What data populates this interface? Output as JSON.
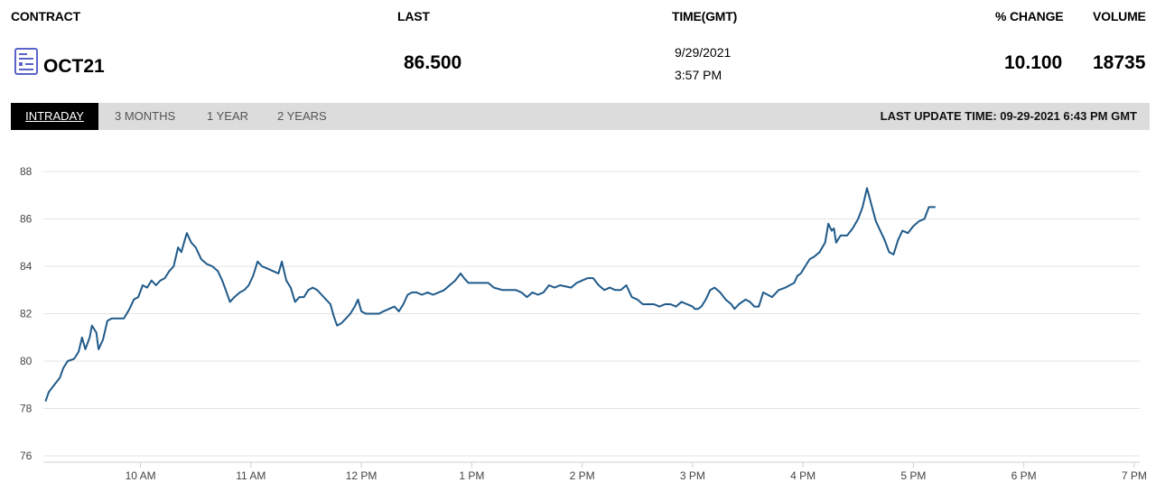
{
  "header": {
    "contract_label": "CONTRACT",
    "last_label": "LAST",
    "time_label": "TIME(GMT)",
    "change_label": "% CHANGE",
    "volume_label": "VOLUME"
  },
  "quote": {
    "contract": "OCT21",
    "last": "86.500",
    "date": "9/29/2021",
    "time": "3:57 PM",
    "change": "10.100",
    "volume": "18735",
    "contract_icon": "report-document-icon"
  },
  "tabs": [
    "INTRADAY",
    "3 MONTHS",
    "1 YEAR",
    "2 YEARS"
  ],
  "active_tab": "INTRADAY",
  "last_update": "LAST UPDATE TIME: 09-29-2021 6:43 PM GMT",
  "colors": {
    "line": "#1f5a8a",
    "grid": "#e4e4e4",
    "tabbar": "#dcdcdc",
    "icon": "#5a63c8"
  },
  "chart_data": {
    "type": "line",
    "grid": true,
    "ylim": [
      76,
      88
    ],
    "y_ticks": [
      76,
      78,
      80,
      82,
      84,
      86,
      88
    ],
    "xlim": [
      9.12,
      19.05
    ],
    "x_ticks": [
      {
        "value": 10,
        "label": "10 AM"
      },
      {
        "value": 11,
        "label": "11 AM"
      },
      {
        "value": 12,
        "label": "12 PM"
      },
      {
        "value": 13,
        "label": "1 PM"
      },
      {
        "value": 14,
        "label": "2 PM"
      },
      {
        "value": 15,
        "label": "3 PM"
      },
      {
        "value": 16,
        "label": "4 PM"
      },
      {
        "value": 17,
        "label": "5 PM"
      },
      {
        "value": 18,
        "label": "6 PM"
      },
      {
        "value": 19,
        "label": "7 PM"
      }
    ],
    "series": [
      {
        "points": [
          [
            9.14,
            78.3
          ],
          [
            9.17,
            78.7
          ],
          [
            9.22,
            79.0
          ],
          [
            9.27,
            79.3
          ],
          [
            9.3,
            79.7
          ],
          [
            9.34,
            80.0
          ],
          [
            9.4,
            80.1
          ],
          [
            9.44,
            80.4
          ],
          [
            9.47,
            81.0
          ],
          [
            9.5,
            80.5
          ],
          [
            9.54,
            81.0
          ],
          [
            9.56,
            81.5
          ],
          [
            9.6,
            81.2
          ],
          [
            9.62,
            80.5
          ],
          [
            9.66,
            80.9
          ],
          [
            9.7,
            81.7
          ],
          [
            9.74,
            81.8
          ],
          [
            9.8,
            81.8
          ],
          [
            9.85,
            81.8
          ],
          [
            9.9,
            82.2
          ],
          [
            9.94,
            82.6
          ],
          [
            9.98,
            82.7
          ],
          [
            10.02,
            83.2
          ],
          [
            10.06,
            83.1
          ],
          [
            10.1,
            83.4
          ],
          [
            10.14,
            83.2
          ],
          [
            10.18,
            83.4
          ],
          [
            10.22,
            83.5
          ],
          [
            10.26,
            83.8
          ],
          [
            10.3,
            84.0
          ],
          [
            10.34,
            84.8
          ],
          [
            10.37,
            84.6
          ],
          [
            10.4,
            85.1
          ],
          [
            10.42,
            85.4
          ],
          [
            10.46,
            85.0
          ],
          [
            10.5,
            84.8
          ],
          [
            10.55,
            84.3
          ],
          [
            10.6,
            84.1
          ],
          [
            10.65,
            84.0
          ],
          [
            10.7,
            83.8
          ],
          [
            10.74,
            83.4
          ],
          [
            10.78,
            82.9
          ],
          [
            10.81,
            82.5
          ],
          [
            10.85,
            82.7
          ],
          [
            10.9,
            82.9
          ],
          [
            10.94,
            83.0
          ],
          [
            10.98,
            83.2
          ],
          [
            11.02,
            83.6
          ],
          [
            11.06,
            84.2
          ],
          [
            11.1,
            84.0
          ],
          [
            11.15,
            83.9
          ],
          [
            11.2,
            83.8
          ],
          [
            11.25,
            83.7
          ],
          [
            11.28,
            84.2
          ],
          [
            11.32,
            83.4
          ],
          [
            11.36,
            83.1
          ],
          [
            11.4,
            82.5
          ],
          [
            11.44,
            82.7
          ],
          [
            11.48,
            82.7
          ],
          [
            11.52,
            83.0
          ],
          [
            11.56,
            83.1
          ],
          [
            11.6,
            83.0
          ],
          [
            11.64,
            82.8
          ],
          [
            11.68,
            82.6
          ],
          [
            11.72,
            82.4
          ],
          [
            11.75,
            81.9
          ],
          [
            11.78,
            81.5
          ],
          [
            11.82,
            81.6
          ],
          [
            11.86,
            81.8
          ],
          [
            11.9,
            82.0
          ],
          [
            11.94,
            82.3
          ],
          [
            11.97,
            82.6
          ],
          [
            12.0,
            82.1
          ],
          [
            12.04,
            82.0
          ],
          [
            12.08,
            82.0
          ],
          [
            12.12,
            82.0
          ],
          [
            12.16,
            82.0
          ],
          [
            12.2,
            82.1
          ],
          [
            12.25,
            82.2
          ],
          [
            12.3,
            82.3
          ],
          [
            12.34,
            82.1
          ],
          [
            12.38,
            82.4
          ],
          [
            12.42,
            82.8
          ],
          [
            12.46,
            82.9
          ],
          [
            12.5,
            82.9
          ],
          [
            12.55,
            82.8
          ],
          [
            12.6,
            82.9
          ],
          [
            12.65,
            82.8
          ],
          [
            12.7,
            82.9
          ],
          [
            12.75,
            83.0
          ],
          [
            12.8,
            83.2
          ],
          [
            12.85,
            83.4
          ],
          [
            12.9,
            83.7
          ],
          [
            12.93,
            83.5
          ],
          [
            12.97,
            83.3
          ],
          [
            13.05,
            83.3
          ],
          [
            13.15,
            83.3
          ],
          [
            13.2,
            83.1
          ],
          [
            13.28,
            83.0
          ],
          [
            13.35,
            83.0
          ],
          [
            13.4,
            83.0
          ],
          [
            13.45,
            82.9
          ],
          [
            13.5,
            82.7
          ],
          [
            13.55,
            82.9
          ],
          [
            13.6,
            82.8
          ],
          [
            13.65,
            82.9
          ],
          [
            13.7,
            83.2
          ],
          [
            13.75,
            83.1
          ],
          [
            13.8,
            83.2
          ],
          [
            13.9,
            83.1
          ],
          [
            13.95,
            83.3
          ],
          [
            14.0,
            83.4
          ],
          [
            14.05,
            83.5
          ],
          [
            14.1,
            83.5
          ],
          [
            14.15,
            83.2
          ],
          [
            14.2,
            83.0
          ],
          [
            14.25,
            83.1
          ],
          [
            14.3,
            83.0
          ],
          [
            14.35,
            83.0
          ],
          [
            14.4,
            83.2
          ],
          [
            14.45,
            82.7
          ],
          [
            14.5,
            82.6
          ],
          [
            14.55,
            82.4
          ],
          [
            14.6,
            82.4
          ],
          [
            14.65,
            82.4
          ],
          [
            14.7,
            82.3
          ],
          [
            14.75,
            82.4
          ],
          [
            14.8,
            82.4
          ],
          [
            14.85,
            82.3
          ],
          [
            14.9,
            82.5
          ],
          [
            14.95,
            82.4
          ],
          [
            15.0,
            82.3
          ],
          [
            15.02,
            82.2
          ],
          [
            15.05,
            82.2
          ],
          [
            15.08,
            82.3
          ],
          [
            15.12,
            82.6
          ],
          [
            15.16,
            83.0
          ],
          [
            15.2,
            83.1
          ],
          [
            15.25,
            82.9
          ],
          [
            15.3,
            82.6
          ],
          [
            15.35,
            82.4
          ],
          [
            15.38,
            82.2
          ],
          [
            15.42,
            82.4
          ],
          [
            15.48,
            82.6
          ],
          [
            15.52,
            82.5
          ],
          [
            15.56,
            82.3
          ],
          [
            15.6,
            82.3
          ],
          [
            15.64,
            82.9
          ],
          [
            15.68,
            82.8
          ],
          [
            15.72,
            82.7
          ],
          [
            15.78,
            83.0
          ],
          [
            15.84,
            83.1
          ],
          [
            15.88,
            83.2
          ],
          [
            15.92,
            83.3
          ],
          [
            15.95,
            83.6
          ],
          [
            15.98,
            83.7
          ],
          [
            16.02,
            84.0
          ],
          [
            16.06,
            84.3
          ],
          [
            16.1,
            84.4
          ],
          [
            16.15,
            84.6
          ],
          [
            16.2,
            85.0
          ],
          [
            16.23,
            85.8
          ],
          [
            16.26,
            85.5
          ],
          [
            16.28,
            85.6
          ],
          [
            16.3,
            85.0
          ],
          [
            16.34,
            85.3
          ],
          [
            16.4,
            85.3
          ],
          [
            16.45,
            85.6
          ],
          [
            16.5,
            86.0
          ],
          [
            16.54,
            86.5
          ],
          [
            16.58,
            87.3
          ],
          [
            16.62,
            86.6
          ],
          [
            16.66,
            85.9
          ],
          [
            16.7,
            85.5
          ],
          [
            16.74,
            85.1
          ],
          [
            16.78,
            84.6
          ],
          [
            16.82,
            84.5
          ],
          [
            16.86,
            85.1
          ],
          [
            16.9,
            85.5
          ],
          [
            16.95,
            85.4
          ],
          [
            17.0,
            85.7
          ],
          [
            17.05,
            85.9
          ],
          [
            17.1,
            86.0
          ],
          [
            17.14,
            86.5
          ],
          [
            17.2,
            86.5
          ]
        ]
      }
    ]
  }
}
